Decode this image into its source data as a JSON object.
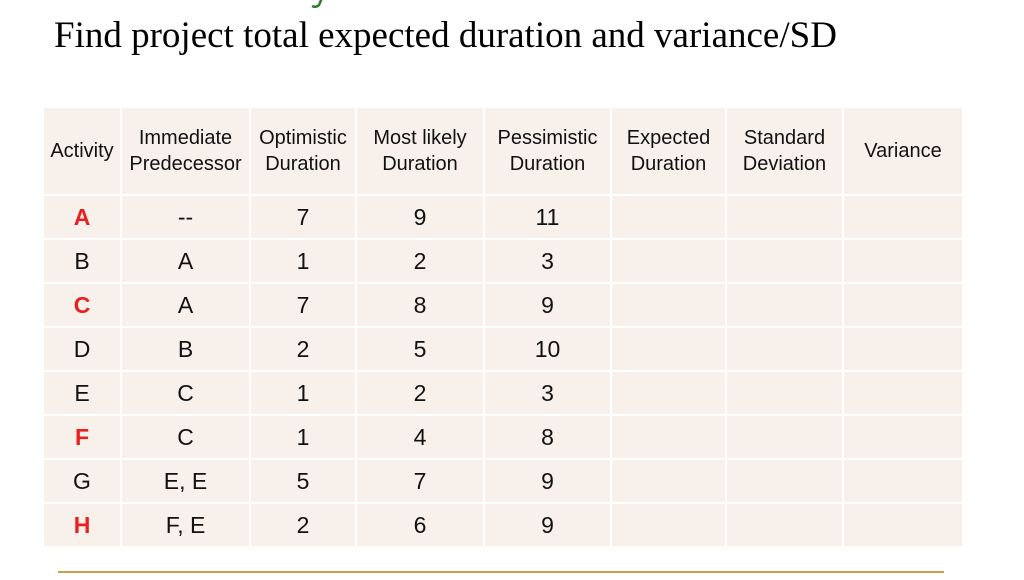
{
  "slide": {
    "title": "Find project total expected duration and variance/SD"
  },
  "table": {
    "headers": [
      [
        "Activity"
      ],
      [
        "Immediate",
        "Predecessor"
      ],
      [
        "Optimistic",
        "Duration"
      ],
      [
        "Most likely",
        "Duration"
      ],
      [
        "Pessimistic",
        "Duration"
      ],
      [
        "Expected",
        "Duration"
      ],
      [
        "Standard",
        "Deviation"
      ],
      [
        "Variance"
      ]
    ],
    "rows": [
      {
        "activity": "A",
        "highlight": true,
        "predecessor": "--",
        "optimistic": "7",
        "most_likely": "9",
        "pessimistic": "11",
        "expected": "",
        "sd": "",
        "variance": ""
      },
      {
        "activity": "B",
        "highlight": false,
        "predecessor": "A",
        "optimistic": "1",
        "most_likely": "2",
        "pessimistic": "3",
        "expected": "",
        "sd": "",
        "variance": ""
      },
      {
        "activity": "C",
        "highlight": true,
        "predecessor": "A",
        "optimistic": "7",
        "most_likely": "8",
        "pessimistic": "9",
        "expected": "",
        "sd": "",
        "variance": ""
      },
      {
        "activity": "D",
        "highlight": false,
        "predecessor": "B",
        "optimistic": "2",
        "most_likely": "5",
        "pessimistic": "10",
        "expected": "",
        "sd": "",
        "variance": ""
      },
      {
        "activity": "E",
        "highlight": false,
        "predecessor": "C",
        "optimistic": "1",
        "most_likely": "2",
        "pessimistic": "3",
        "expected": "",
        "sd": "",
        "variance": ""
      },
      {
        "activity": "F",
        "highlight": true,
        "predecessor": "C",
        "optimistic": "1",
        "most_likely": "4",
        "pessimistic": "8",
        "expected": "",
        "sd": "",
        "variance": ""
      },
      {
        "activity": "G",
        "highlight": false,
        "predecessor": "E, E",
        "optimistic": "5",
        "most_likely": "7",
        "pessimistic": "9",
        "expected": "",
        "sd": "",
        "variance": ""
      },
      {
        "activity": "H",
        "highlight": true,
        "predecessor": "F, E",
        "optimistic": "2",
        "most_likely": "6",
        "pessimistic": "9",
        "expected": "",
        "sd": "",
        "variance": ""
      }
    ]
  },
  "colors": {
    "critical_activity": "#e8201e",
    "cell_background": "#f8f1eb",
    "rule": "#c5a04f",
    "title_remnant": "#2e7d32"
  }
}
